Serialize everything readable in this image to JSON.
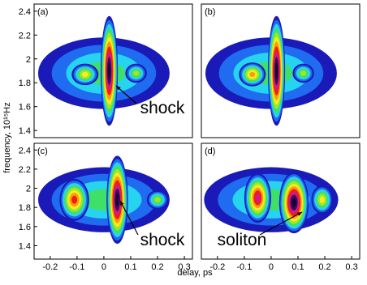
{
  "xlabel": "delay, ps",
  "ylabel": "frequency, 10¹⁵Hz",
  "chart_data": [
    {
      "type": "spectrogram",
      "panel_label": "(a)",
      "annotation": "shock",
      "xlim": [
        -0.26,
        0.33
      ],
      "ylim": [
        1.34,
        2.46
      ],
      "yticks": [
        1.4,
        1.6,
        1.8,
        2,
        2.2,
        2.4
      ]
    },
    {
      "type": "spectrogram",
      "panel_label": "(b)",
      "xlim": [
        -0.26,
        0.33
      ],
      "ylim": [
        1.34,
        2.46
      ]
    },
    {
      "type": "spectrogram",
      "panel_label": "(c)",
      "annotation": "shock",
      "xlim": [
        -0.26,
        0.33
      ],
      "ylim": [
        1.26,
        2.47
      ],
      "xticks": [
        -0.2,
        -0.1,
        0,
        0.1,
        0.2,
        0.3
      ],
      "yticks": [
        1.4,
        1.6,
        1.8,
        2,
        2.2,
        2.4
      ]
    },
    {
      "type": "spectrogram",
      "panel_label": "(d)",
      "annotation": "soliton",
      "xlim": [
        -0.26,
        0.33
      ],
      "ylim": [
        1.26,
        2.47
      ],
      "xticks": [
        -0.2,
        -0.1,
        0,
        0.1,
        0.2,
        0.3
      ]
    }
  ]
}
